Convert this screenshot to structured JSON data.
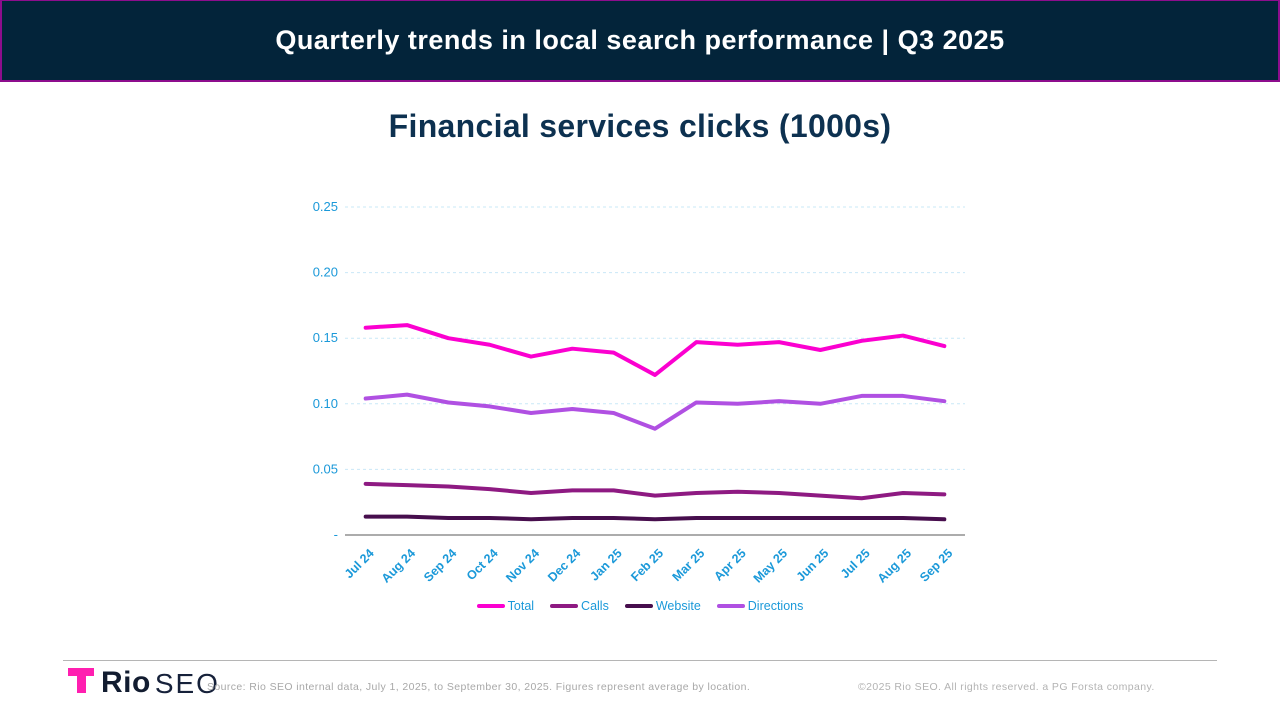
{
  "header": {
    "title": "Quarterly trends in local search performance | Q3 2025"
  },
  "chart_data": {
    "type": "line",
    "title": "Financial services clicks (1000s)",
    "categories": [
      "Jul 24",
      "Aug 24",
      "Sep 24",
      "Oct 24",
      "Nov 24",
      "Dec 24",
      "Jan 25",
      "Feb 25",
      "Mar 25",
      "Apr 25",
      "May 25",
      "Jun 25",
      "Jul 25",
      "Aug 25",
      "Sep 25"
    ],
    "series": [
      {
        "name": "Total",
        "color": "#fb00d0",
        "values": [
          0.158,
          0.16,
          0.15,
          0.145,
          0.136,
          0.142,
          0.139,
          0.122,
          0.147,
          0.145,
          0.147,
          0.141,
          0.148,
          0.152,
          0.144
        ]
      },
      {
        "name": "Calls",
        "color": "#8e1a82",
        "values": [
          0.039,
          0.038,
          0.037,
          0.035,
          0.032,
          0.034,
          0.034,
          0.03,
          0.032,
          0.033,
          0.032,
          0.03,
          0.028,
          0.032,
          0.031
        ]
      },
      {
        "name": "Website",
        "color": "#470e4d",
        "values": [
          0.014,
          0.014,
          0.013,
          0.013,
          0.012,
          0.013,
          0.013,
          0.012,
          0.013,
          0.013,
          0.013,
          0.013,
          0.013,
          0.013,
          0.012
        ]
      },
      {
        "name": "Directions",
        "color": "#b050e2",
        "values": [
          0.104,
          0.107,
          0.101,
          0.098,
          0.093,
          0.096,
          0.093,
          0.081,
          0.101,
          0.1,
          0.102,
          0.1,
          0.106,
          0.106,
          0.102
        ]
      }
    ],
    "xlabel": "",
    "ylabel": "",
    "ylim": [
      0,
      0.25
    ],
    "yticks": [
      0,
      0.05,
      0.1,
      0.15,
      0.2,
      0.25
    ],
    "ytick_labels": [
      "-",
      "0.05",
      "0.10",
      "0.15",
      "0.20",
      "0.25"
    ],
    "grid": "horizontal-dashed",
    "legend_position": "bottom"
  },
  "colors": {
    "header_bg": "#03243a",
    "header_border": "#8d0d8d",
    "title_text": "#0d3150",
    "axis_text": "#1b99d9",
    "gridline": "#c9e8f7",
    "axis_line": "#909090",
    "logo_pink": "#ff1fb0"
  },
  "footer": {
    "logo_bold": "Rio",
    "logo_light": "SEO",
    "source": "Source: Rio SEO internal data, July 1, 2025, to September 30, 2025. Figures represent average by location.",
    "copyright": "©2025 Rio SEO. All rights reserved. a PG Forsta company."
  }
}
